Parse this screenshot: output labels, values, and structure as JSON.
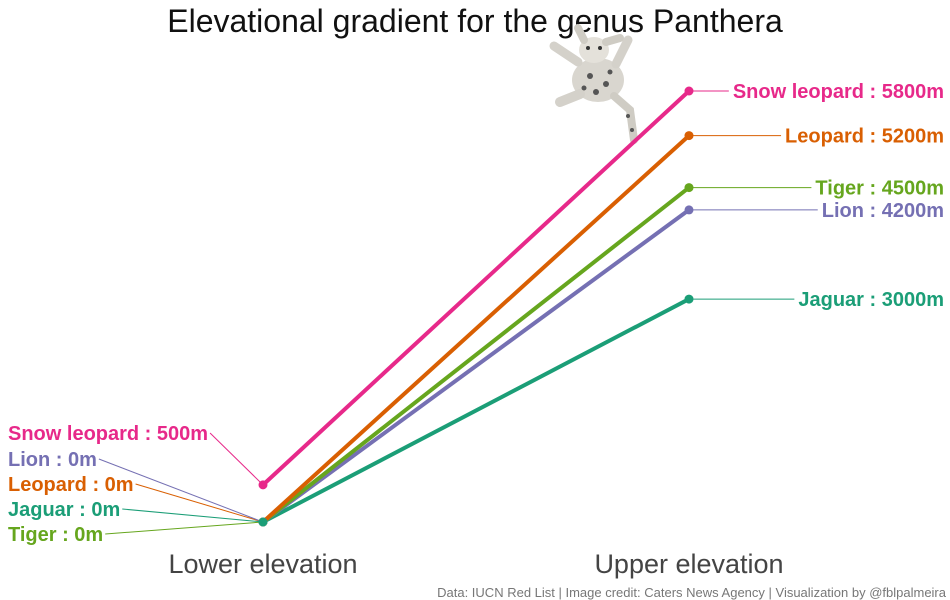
{
  "chart_data": {
    "type": "line",
    "title": "Elevational gradient for the genus Panthera",
    "categories": [
      "Lower elevation",
      "Upper elevation"
    ],
    "unit": "m",
    "caption": "Data: IUCN Red List | Image credit: Caters News Agency | Visualization by @fblpalmeira",
    "ylim": [
      0,
      5800
    ],
    "grid": false,
    "series": [
      {
        "name": "Snow leopard",
        "values": [
          500,
          5800
        ],
        "color": "#E7298A",
        "labels": [
          "Snow leopard : 500m",
          "Snow leopard : 5800m"
        ]
      },
      {
        "name": "Leopard",
        "values": [
          0,
          5200
        ],
        "color": "#D95F02",
        "labels": [
          "Leopard : 0m",
          "Leopard : 5200m"
        ]
      },
      {
        "name": "Tiger",
        "values": [
          0,
          4500
        ],
        "color": "#66A61E",
        "labels": [
          "Tiger : 0m",
          "Tiger : 4500m"
        ]
      },
      {
        "name": "Lion",
        "values": [
          0,
          4200
        ],
        "color": "#7570B3",
        "labels": [
          "Lion : 0m",
          "Lion : 4200m"
        ]
      },
      {
        "name": "Jaguar",
        "values": [
          0,
          3000
        ],
        "color": "#1B9E77",
        "labels": [
          "Jaguar : 0m",
          "Jaguar : 3000m"
        ]
      }
    ],
    "image": {
      "icon": "snow-leopard-photo"
    }
  }
}
